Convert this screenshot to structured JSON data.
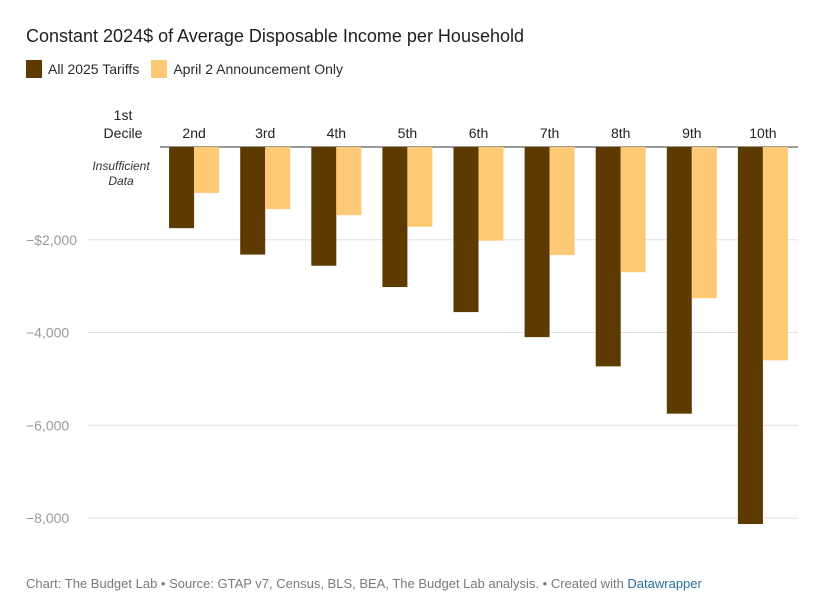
{
  "chart_data": {
    "type": "bar",
    "title": "Constant 2024$ of Average Disposable Income per Household",
    "categories": [
      "1st Decile",
      "2nd",
      "3rd",
      "4th",
      "5th",
      "6th",
      "7th",
      "8th",
      "9th",
      "10th"
    ],
    "series": [
      {
        "name": "All 2025 Tariffs",
        "color": "#5c3a00",
        "values": [
          null,
          -1750,
          -2320,
          -2560,
          -3020,
          -3560,
          -4100,
          -4730,
          -5750,
          -8130
        ]
      },
      {
        "name": "April 2 Announcement Only",
        "color": "#fdc975",
        "values": [
          null,
          -990,
          -1340,
          -1470,
          -1720,
          -2020,
          -2330,
          -2700,
          -3260,
          -4600
        ]
      }
    ],
    "ylim": [
      -8000,
      0
    ],
    "yticks": [
      -2000,
      -4000,
      -6000,
      -8000
    ],
    "ytick_labels": [
      "−$2,000",
      "−4,000",
      "−6,000",
      "−8,000"
    ],
    "annotation": "Insufficient Data",
    "xlabel": "",
    "ylabel": ""
  },
  "footer": {
    "text": "Chart: The Budget Lab • Source: GTAP v7, Census, BLS, BEA, The Budget Lab analysis. • Created with ",
    "link": "Datawrapper"
  }
}
